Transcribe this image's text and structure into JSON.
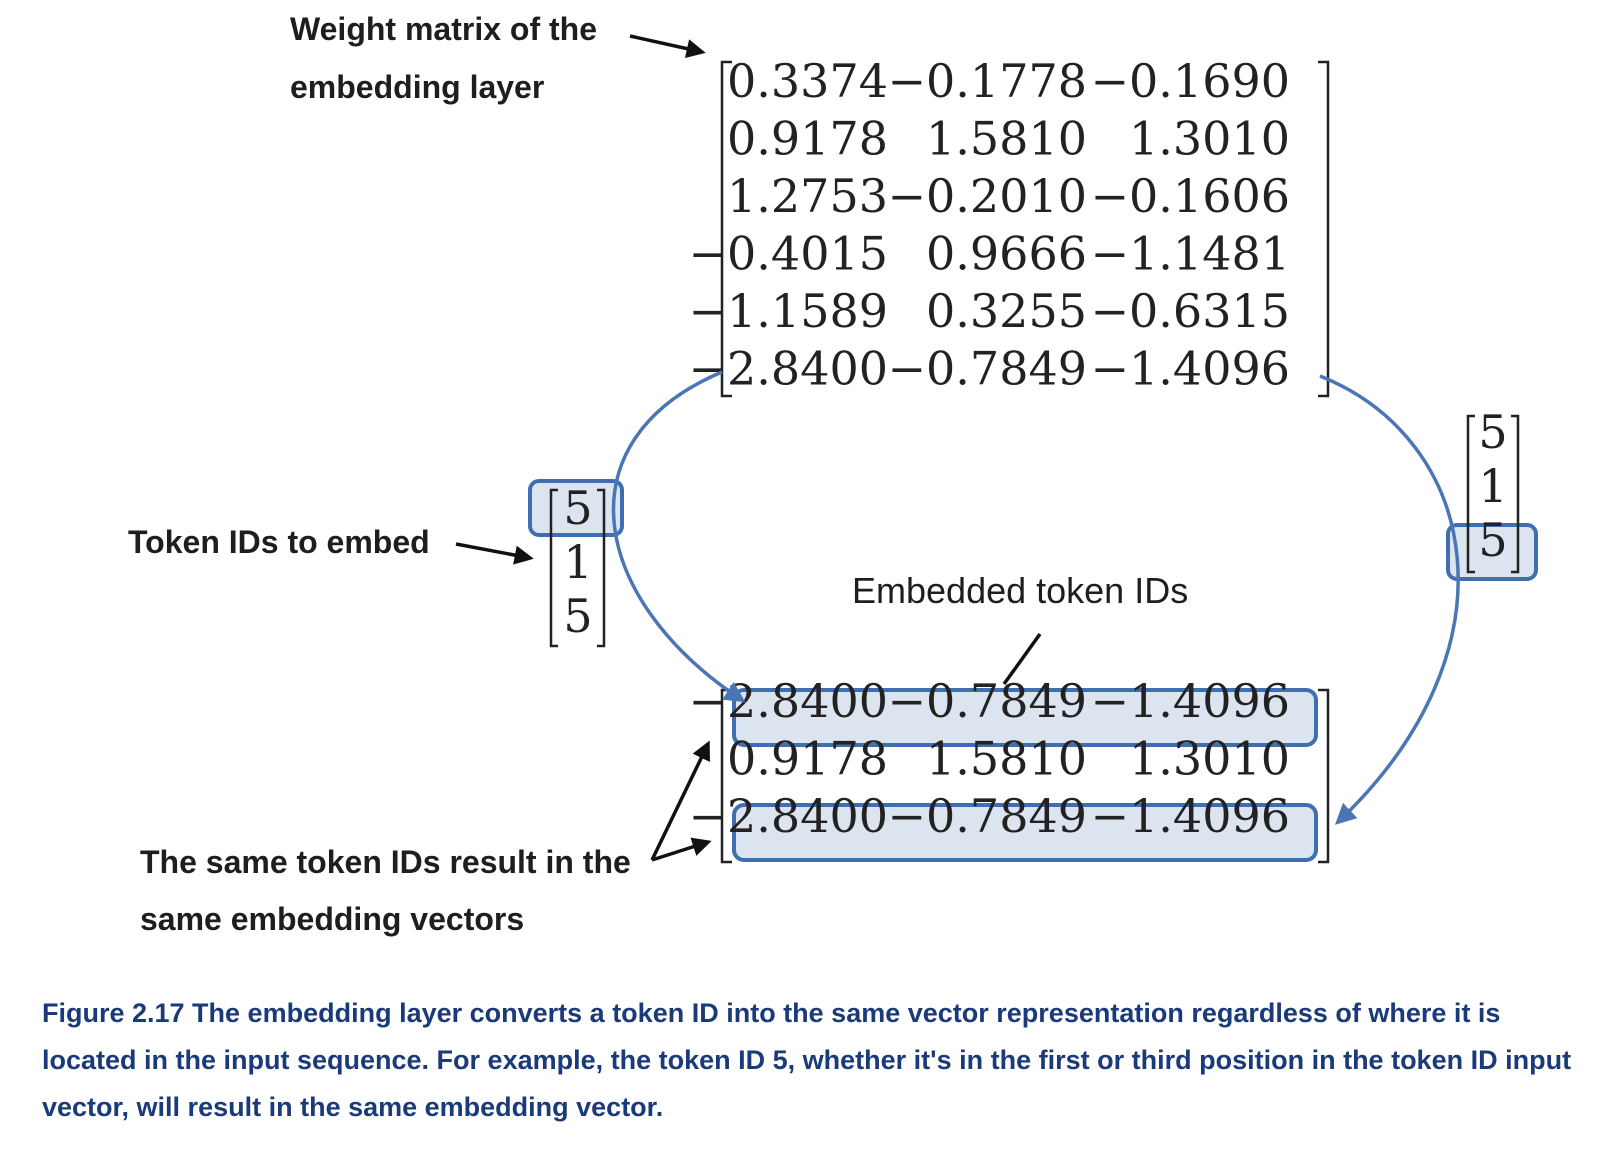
{
  "labels": {
    "weight_matrix_line1": "Weight matrix of the",
    "weight_matrix_line2": "embedding layer",
    "token_ids": "Token IDs to embed",
    "embedded": "Embedded token IDs",
    "same_line1": "The same token IDs result in the",
    "same_line2": "same embedding vectors"
  },
  "weight_matrix": [
    [
      "0.3374",
      "−0.1778",
      "−0.1690"
    ],
    [
      "0.9178",
      "1.5810",
      "1.3010"
    ],
    [
      "1.2753",
      "−0.2010",
      "−0.1606"
    ],
    [
      "−0.4015",
      "0.9666",
      "−1.1481"
    ],
    [
      "−1.1589",
      "0.3255",
      "−0.6315"
    ],
    [
      "−2.8400",
      "−0.7849",
      "−1.4096"
    ]
  ],
  "token_ids_left": [
    "5",
    "1",
    "5"
  ],
  "token_ids_right": [
    "5",
    "1",
    "5"
  ],
  "embedded_matrix": [
    [
      "−2.8400",
      "−0.7849",
      "−1.4096"
    ],
    [
      "0.9178",
      "1.5810",
      "1.3010"
    ],
    [
      "−2.8400",
      "−0.7849",
      "−1.4096"
    ]
  ],
  "caption": "Figure 2.17 The embedding layer converts a token ID into the same vector representation regardless of where it is located in the input sequence. For example, the token ID 5, whether it's in the first or third position in the token ID input vector, will result in the same embedding vector.",
  "colors": {
    "highlight_stroke": "#3f6fb0",
    "highlight_fill": "#dbe4ef",
    "arrow_blue": "#4a76b5",
    "caption": "#1a3a7a"
  }
}
